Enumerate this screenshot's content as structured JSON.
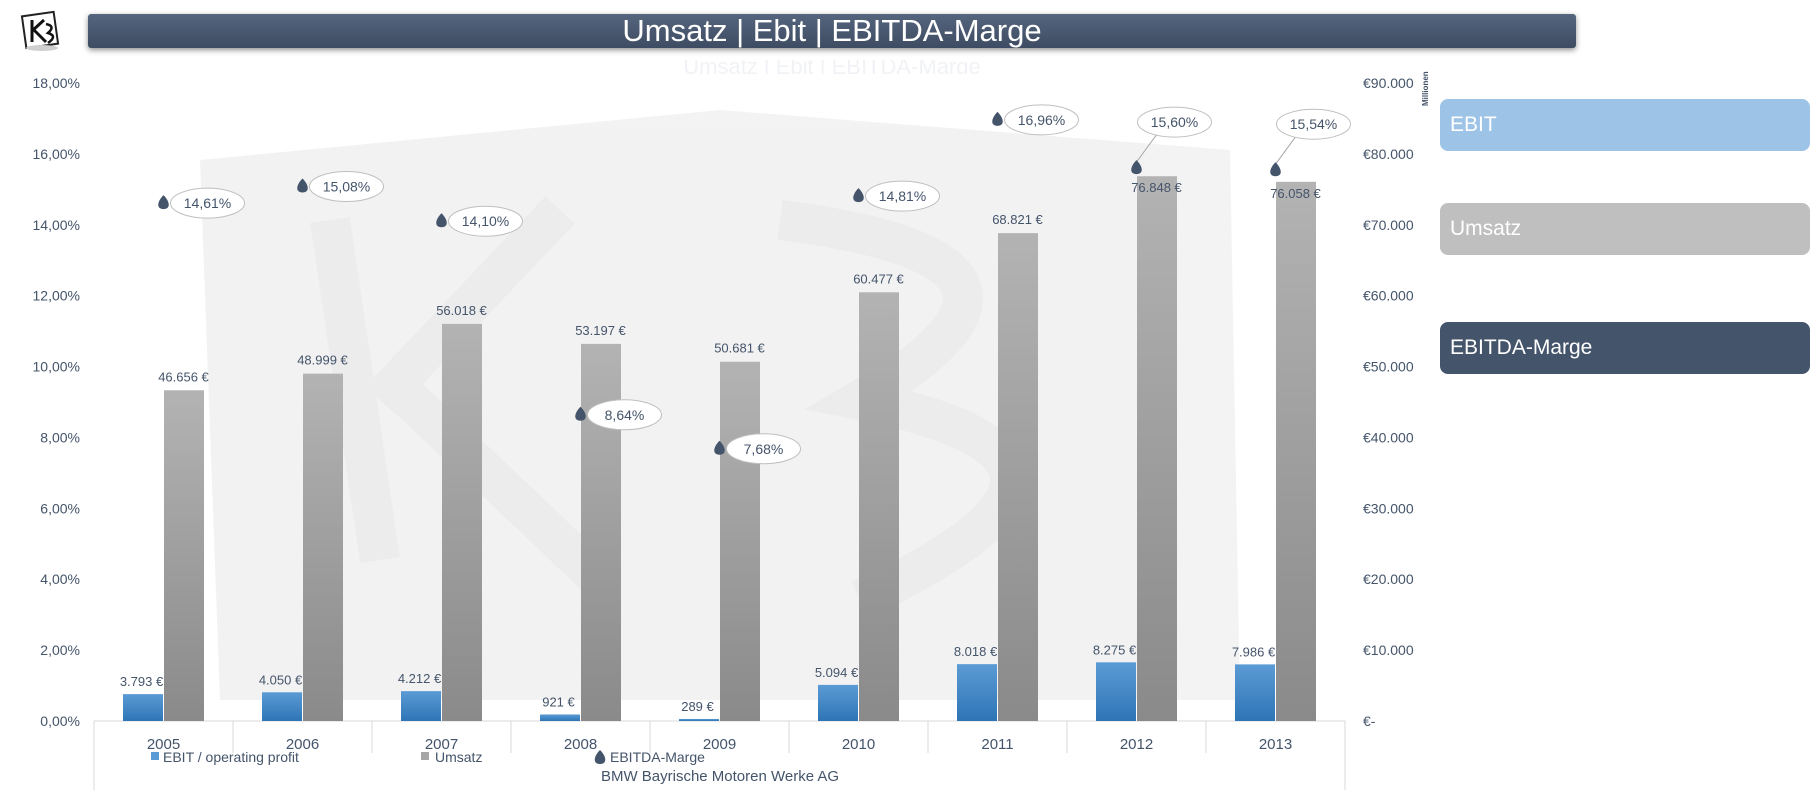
{
  "title": "Umsatz | Ebit | EBITDA-Marge",
  "buttons": {
    "ebit": "EBIT",
    "umsatz": "Umsatz",
    "marge": "EBITDA-Marge"
  },
  "colors": {
    "ebit": "#5b9bd5",
    "umsatz": "#a6a6a6",
    "marge": "#44546a",
    "axis_text": "#44546a"
  },
  "chart_data": {
    "type": "bar",
    "title": "Umsatz | Ebit | EBITDA-Marge",
    "xlabel": "BMW Bayrische Motoren Werke AG",
    "categories": [
      "2005",
      "2006",
      "2007",
      "2008",
      "2009",
      "2010",
      "2011",
      "2012",
      "2013"
    ],
    "series": [
      {
        "name": "EBIT / operating profit",
        "axis": "right",
        "values": [
          3793,
          4050,
          4212,
          921,
          289,
          5094,
          8018,
          8275,
          7986
        ],
        "labels": [
          "3.793 €",
          "4.050 €",
          "4.212 €",
          "921 €",
          "289 €",
          "5.094 €",
          "8.018 €",
          "8.275 €",
          "7.986 €"
        ]
      },
      {
        "name": "Umsatz",
        "axis": "right",
        "values": [
          46656,
          48999,
          56018,
          53197,
          50681,
          60477,
          68821,
          76848,
          76058
        ],
        "labels": [
          "46.656 €",
          "48.999 €",
          "56.018 €",
          "53.197 €",
          "50.681 €",
          "60.477 €",
          "68.821 €",
          "76.848 €",
          "76.058 €"
        ]
      },
      {
        "name": "EBITDA-Marge",
        "axis": "left",
        "type": "scatter",
        "values": [
          14.61,
          15.08,
          14.1,
          8.64,
          7.68,
          14.81,
          16.96,
          15.6,
          15.54
        ],
        "labels": [
          "14,61%",
          "15,08%",
          "14,10%",
          "8,64%",
          "7,68%",
          "14,81%",
          "16,96%",
          "15,60%",
          "15,54%"
        ]
      }
    ],
    "y_left": {
      "range": [
        0,
        18
      ],
      "ticks": [
        "0,00%",
        "2,00%",
        "4,00%",
        "6,00%",
        "8,00%",
        "10,00%",
        "12,00%",
        "14,00%",
        "16,00%",
        "18,00%"
      ]
    },
    "y_right": {
      "range": [
        0,
        90000
      ],
      "unit_label": "Millionen",
      "ticks": [
        "€-",
        "€10.000",
        "€20.000",
        "€30.000",
        "€40.000",
        "€50.000",
        "€60.000",
        "€70.000",
        "€80.000",
        "€90.000"
      ]
    },
    "legend": "bottom",
    "grid": false
  }
}
